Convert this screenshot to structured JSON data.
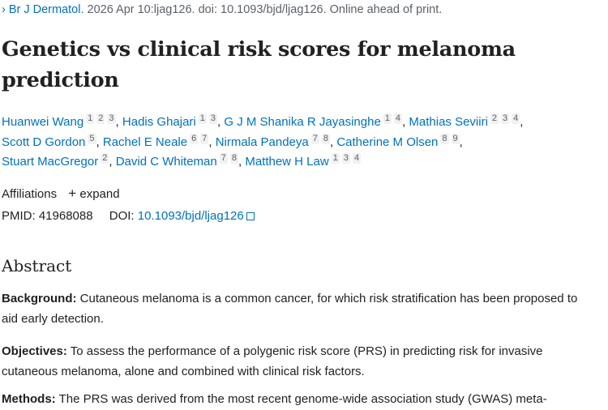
{
  "source": {
    "journal": "Br J Dermatol.",
    "citation": " 2026 Apr 10:ljag126. doi: 10.1093/bjd/ljag126. Online ahead of print."
  },
  "title": "Genetics vs clinical risk scores for melanoma prediction",
  "authors": [
    {
      "name": "Huanwei Wang",
      "affs": [
        "1",
        "2",
        "3"
      ]
    },
    {
      "name": "Hadis Ghajari",
      "affs": [
        "1",
        "3"
      ]
    },
    {
      "name": "G J M Shanika R Jayasinghe",
      "affs": [
        "1",
        "4"
      ]
    },
    {
      "name": "Mathias Seviiri",
      "affs": [
        "2",
        "3",
        "4"
      ]
    },
    {
      "name": "Scott D Gordon",
      "affs": [
        "5"
      ]
    },
    {
      "name": "Rachel E Neale",
      "affs": [
        "6",
        "7"
      ]
    },
    {
      "name": "Nirmala Pandeya",
      "affs": [
        "7",
        "8"
      ]
    },
    {
      "name": "Catherine M Olsen",
      "affs": [
        "8",
        "9"
      ]
    },
    {
      "name": "Stuart MacGregor",
      "affs": [
        "2"
      ]
    },
    {
      "name": "David C Whiteman",
      "affs": [
        "7",
        "8"
      ]
    },
    {
      "name": "Matthew H Law",
      "affs": [
        "1",
        "3",
        "4"
      ]
    }
  ],
  "affiliations": {
    "label": "Affiliations",
    "expand": "expand"
  },
  "ids": {
    "pmid_label": "PMID:",
    "pmid": "41968088",
    "doi_label": "DOI:",
    "doi": "10.1093/bjd/ljag126"
  },
  "abstract": {
    "heading": "Abstract",
    "sections": [
      {
        "label": "Background:",
        "text": " Cutaneous melanoma is a common cancer, for which risk stratification has been proposed to aid early detection."
      },
      {
        "label": "Objectives:",
        "text": " To assess the performance of a polygenic risk score (PRS) in predicting risk for invasive cutaneous melanoma, alone and combined with clinical risk factors."
      },
      {
        "label": "Methods:",
        "text": " The PRS was derived from the most recent genome-wide association study (GWAS) meta-"
      }
    ]
  }
}
